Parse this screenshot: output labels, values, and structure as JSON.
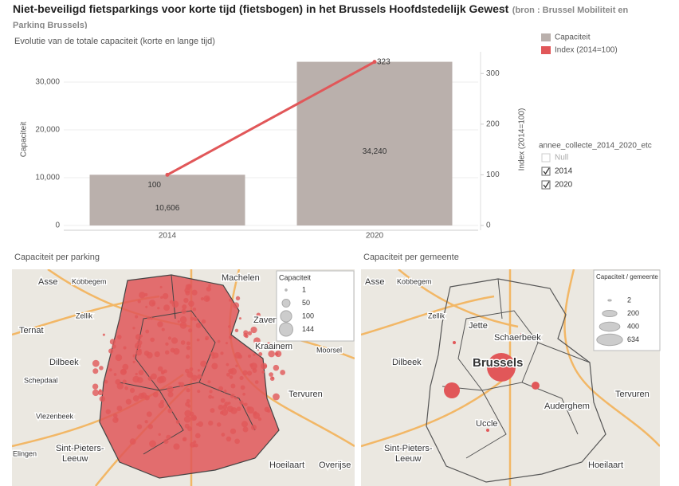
{
  "header": {
    "title": "Niet-beveiligd fietsparkings voor korte tijd (fietsbogen) in het Brussels Hoofdstedelijk Gewest",
    "source": "(bron : Brussel Mobiliteit en Parking Brussels)"
  },
  "chart_data": {
    "type": "bar-line",
    "title": "Evolutie van de totale capaciteit (korte en lange tijd)",
    "categories": [
      "2014",
      "2020"
    ],
    "series": [
      {
        "name": "Capaciteit",
        "type": "bar",
        "color": "#bab0ac",
        "values": [
          10606,
          34240
        ],
        "value_labels": [
          "10,606",
          "34,240"
        ]
      },
      {
        "name": "Index (2014=100)",
        "type": "line",
        "axis": "y2",
        "color": "#e15759",
        "values": [
          100,
          323
        ]
      }
    ],
    "y_label": "Capaciteit",
    "y2_label": "Index (2014=100)",
    "ylim": [
      0,
      35500
    ],
    "yticks": [
      0,
      {
        "value": 10000,
        "label": "10,000"
      },
      {
        "value": 20000,
        "label": "20,000"
      },
      {
        "value": 30000,
        "label": "30,000"
      }
    ],
    "y2lim": [
      0,
      335
    ],
    "y2ticks": [
      0,
      100,
      200,
      300
    ],
    "grid": true
  },
  "filter": {
    "title": "annee_collecte_2014_2020_etc",
    "options": [
      {
        "label": "Null",
        "checked": false
      },
      {
        "label": "2014",
        "checked": true
      },
      {
        "label": "2020",
        "checked": true
      }
    ]
  },
  "maps": [
    {
      "title": "Capaciteit per parking",
      "legend_title": "Capaciteit",
      "legend_sizes": [
        1,
        50,
        100,
        144
      ],
      "places": [
        "Asse",
        "Kobbegem",
        "Machelen",
        "Zellik",
        "Zaventem",
        "Ternat",
        "Kraainem",
        "Moorsel",
        "Dilbeek",
        "Schepdaal",
        "Tervuren",
        "Vlezenbeek",
        "Sint-Pieters-",
        "Leeuw",
        "Elingen",
        "Hoeilaart",
        "Overijse"
      ]
    },
    {
      "title": "Capaciteit per gemeente",
      "legend_title": "Capaciteit / gemeente",
      "legend_sizes": [
        2,
        200,
        400,
        634
      ],
      "places": [
        "Asse",
        "Kobbegem",
        "Zellik",
        "Jette",
        "Schaerbeek",
        "Dilbeek",
        "Brussels",
        "Tervuren",
        "Auderghem",
        "Uccle",
        "Sint-Pieters-",
        "Leeuw",
        "Hoeilaart"
      ]
    }
  ]
}
